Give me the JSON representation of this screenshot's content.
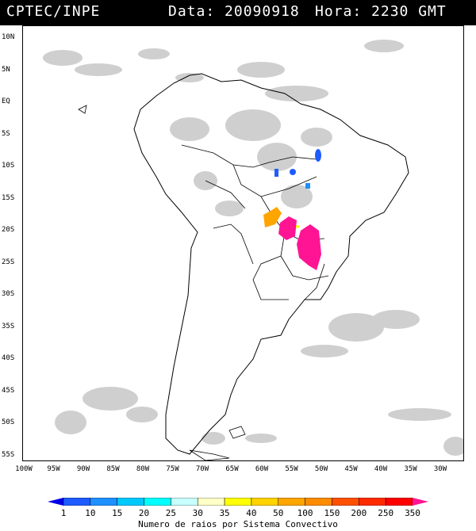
{
  "header": {
    "source": "CPTEC/INPE",
    "date_label": "Data: 20090918",
    "time_label": "Hora: 2230 GMT"
  },
  "map": {
    "lat_ticks": [
      "10N",
      "5N",
      "EQ",
      "5S",
      "10S",
      "15S",
      "20S",
      "25S",
      "30S",
      "35S",
      "40S",
      "45S",
      "50S",
      "55S"
    ],
    "lon_ticks": [
      "100W",
      "95W",
      "90W",
      "85W",
      "80W",
      "75W",
      "70W",
      "65W",
      "60W",
      "55W",
      "50W",
      "45W",
      "40W",
      "35W",
      "30W"
    ],
    "cloud_color": "#cfcfcf",
    "land_outline_color": "#000000"
  },
  "colorbar": {
    "title": "Numero de raios por Sistema Convectivo",
    "labels": [
      "1",
      "10",
      "15",
      "20",
      "25",
      "30",
      "35",
      "40",
      "50",
      "100",
      "150",
      "200",
      "250",
      "350"
    ],
    "colors": [
      "#0000e6",
      "#1e5cff",
      "#1e90ff",
      "#00c8ff",
      "#00ffff",
      "#c8ffff",
      "#ffffc8",
      "#ffff00",
      "#ffd200",
      "#ffa500",
      "#ff8c00",
      "#ff5000",
      "#ff2a00",
      "#ff0000",
      "#ff1493"
    ]
  },
  "convective_systems": [
    {
      "color": "#1e5cff"
    },
    {
      "color": "#1e5cff"
    },
    {
      "color": "#1e5cff"
    },
    {
      "color": "#1e90ff"
    },
    {
      "color": "#ffa500"
    },
    {
      "color": "#ff1493"
    },
    {
      "color": "#ff1493"
    },
    {
      "color": "#ffff00"
    }
  ]
}
